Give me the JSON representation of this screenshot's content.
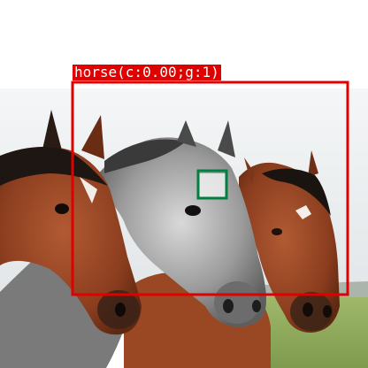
{
  "detection": {
    "label_text": "horse(c:0.00;g:1)",
    "box_color": "#e00000",
    "roi_color": "#008040"
  },
  "scene": {
    "subject": "three horses",
    "icons": [
      "horse-left",
      "horse-middle-gray",
      "horse-right"
    ]
  }
}
